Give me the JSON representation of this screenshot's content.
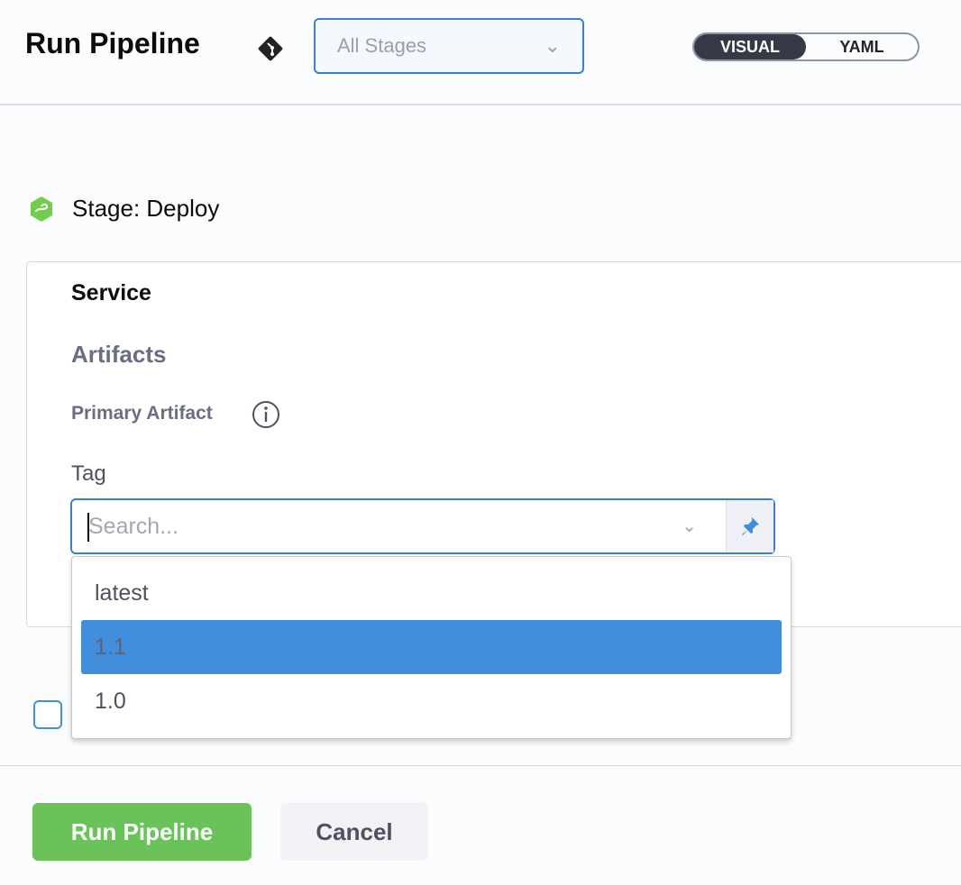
{
  "header": {
    "title": "Run Pipeline",
    "stage_select": "All Stages",
    "views": [
      "VISUAL",
      "YAML"
    ],
    "active_view": "VISUAL"
  },
  "stage": {
    "label": "Stage: Deploy"
  },
  "form": {
    "section": "Service",
    "subsection": "Artifacts",
    "primary_artifact": "Primary Artifact",
    "tag_label": "Tag",
    "tag_placeholder": "Search...",
    "tag_options": [
      "latest",
      "1.1",
      "1.0"
    ],
    "highlighted_option": "1.1"
  },
  "footer": {
    "run": "Run Pipeline",
    "cancel": "Cancel"
  },
  "colors": {
    "accent": "#3b7fd4",
    "highlight": "#418fdc",
    "run": "#69c35a",
    "toggle_active": "#383946"
  }
}
